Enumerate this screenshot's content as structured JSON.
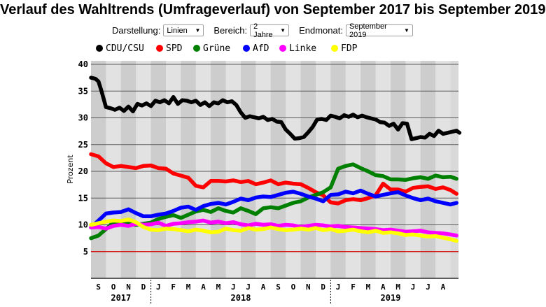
{
  "title": "Verlauf des Wahltrends (Umfrageverlauf) von September 2017 bis September 2019",
  "controls": {
    "darstellung": {
      "label": "Darstellung:",
      "value": "Linien"
    },
    "bereich": {
      "label": "Bereich:",
      "value": "2 Jahre"
    },
    "endmonat": {
      "label": "Endmonat:",
      "value": "September 2019"
    }
  },
  "chart_data": {
    "type": "line",
    "ylabel": "Prozent",
    "ylim": [
      0,
      40
    ],
    "yticks": [
      5,
      10,
      15,
      20,
      25,
      30,
      35,
      40
    ],
    "xlim": [
      0,
      24.6
    ],
    "grid": true,
    "legend_position": "top",
    "reference_line": {
      "y": 5,
      "color": "#e00000"
    },
    "months": [
      "S",
      "O",
      "N",
      "D",
      "J",
      "F",
      "M",
      "A",
      "M",
      "J",
      "J",
      "A",
      "S",
      "O",
      "N",
      "D",
      "J",
      "F",
      "M",
      "A",
      "M",
      "J",
      "J",
      "A"
    ],
    "years": [
      {
        "label": "2017",
        "from": 0,
        "to": 4
      },
      {
        "label": "2018",
        "from": 4,
        "to": 16
      },
      {
        "label": "2019",
        "from": 16,
        "to": 24.6
      }
    ],
    "series": [
      {
        "name": "CDU/CSU",
        "color": "#000000",
        "x": [
          0,
          0.3,
          0.5,
          0.7,
          1.0,
          1.3,
          1.6,
          1.9,
          2.2,
          2.5,
          2.8,
          3.1,
          3.4,
          3.7,
          4.0,
          4.3,
          4.6,
          4.9,
          5.2,
          5.5,
          5.8,
          6.1,
          6.4,
          6.7,
          7.0,
          7.3,
          7.6,
          7.9,
          8.2,
          8.5,
          8.8,
          9.1,
          9.4,
          9.7,
          10.0,
          10.3,
          10.6,
          10.9,
          11.2,
          11.5,
          11.8,
          12.1,
          12.4,
          12.7,
          13.0,
          13.3,
          13.6,
          13.9,
          14.2,
          14.5,
          14.8,
          15.1,
          15.4,
          15.7,
          16.0,
          16.3,
          16.6,
          16.9,
          17.2,
          17.5,
          17.8,
          18.1,
          18.4,
          18.7,
          19.0,
          19.3,
          19.6,
          19.9,
          20.2,
          20.5,
          20.8,
          21.1,
          21.4,
          21.7,
          22.0,
          22.3,
          22.6,
          22.9,
          23.2,
          23.5,
          23.8,
          24.1,
          24.4,
          24.6
        ],
        "values": [
          37.5,
          37.3,
          36.8,
          35,
          32,
          31.8,
          31.5,
          31.9,
          31.3,
          32.1,
          31.2,
          32.6,
          32.3,
          32.7,
          32.2,
          33.2,
          32.9,
          33.3,
          32.7,
          33.9,
          32.6,
          33.3,
          33.2,
          32.9,
          33.2,
          32.4,
          32.9,
          32.2,
          32.9,
          32.7,
          33.3,
          32.9,
          33.1,
          32.4,
          31,
          30,
          30.3,
          30.1,
          29.9,
          30.2,
          29.6,
          29.8,
          29.3,
          29.2,
          27.8,
          27,
          26.1,
          26.2,
          26.4,
          27.3,
          28.3,
          29.7,
          29.8,
          29.6,
          30.4,
          30.2,
          29.9,
          30.5,
          30.2,
          30.6,
          30.1,
          30.4,
          30.1,
          29.9,
          29.7,
          29.2,
          29.1,
          28.5,
          28.9,
          27.8,
          29,
          28.9,
          26,
          26.2,
          26.4,
          26.3,
          27,
          26.6,
          27.6,
          27,
          27.2,
          27.4,
          27.6,
          27.2
        ]
      },
      {
        "name": "SPD",
        "color": "#ff0000",
        "x": [
          0,
          0.5,
          1.0,
          1.5,
          2.0,
          2.5,
          3.0,
          3.5,
          4.0,
          4.5,
          5.0,
          5.5,
          6.0,
          6.5,
          7.0,
          7.5,
          8.0,
          8.5,
          9.0,
          9.5,
          10.0,
          10.5,
          11.0,
          11.5,
          12.0,
          12.5,
          13.0,
          13.5,
          14.0,
          14.5,
          15.0,
          15.5,
          16.0,
          16.5,
          17.0,
          17.5,
          18.0,
          18.5,
          19.0,
          19.5,
          20.0,
          20.5,
          21.0,
          21.5,
          22.0,
          22.5,
          23.0,
          23.5,
          24.0,
          24.4
        ],
        "values": [
          23.2,
          22.8,
          21.5,
          20.8,
          21.0,
          20.8,
          20.6,
          21.0,
          21.1,
          20.6,
          20.5,
          19.6,
          19.2,
          18.8,
          17.3,
          17.0,
          18.2,
          18.2,
          18.1,
          18.3,
          18.0,
          18.2,
          17.6,
          17.9,
          18.3,
          17.6,
          17.9,
          17.7,
          17.6,
          16.9,
          16.1,
          15.5,
          14.2,
          14.0,
          14.6,
          14.8,
          14.6,
          15.0,
          15.5,
          17.7,
          16.6,
          16.6,
          16.2,
          16.9,
          17.1,
          17.2,
          16.7,
          17.0,
          16.5,
          15.8
        ]
      },
      {
        "name": "Grüne",
        "color": "#008000",
        "x": [
          0,
          0.5,
          1.0,
          1.5,
          2.0,
          2.5,
          3.0,
          3.5,
          4.0,
          4.5,
          5.0,
          5.5,
          6.0,
          6.5,
          7.0,
          7.5,
          8.0,
          8.5,
          9.0,
          9.5,
          10.0,
          10.5,
          11.0,
          11.5,
          12.0,
          12.5,
          13.0,
          13.5,
          14.0,
          14.5,
          15.0,
          15.5,
          16.0,
          16.5,
          17.0,
          17.5,
          18.0,
          18.5,
          19.0,
          19.5,
          20.0,
          20.5,
          21.0,
          21.5,
          22.0,
          22.5,
          23.0,
          23.5,
          24.0,
          24.4
        ],
        "values": [
          7.5,
          8.0,
          9.2,
          10.5,
          10.1,
          10.2,
          10.0,
          10.2,
          10.4,
          11.1,
          11.5,
          11.8,
          11.3,
          11.9,
          12.5,
          12.8,
          12.4,
          13.1,
          12.6,
          12.3,
          13.1,
          12.6,
          12.0,
          13.1,
          13.3,
          13.1,
          13.6,
          14.1,
          14.4,
          15.1,
          15.6,
          16.1,
          17.0,
          20.5,
          21.0,
          21.3,
          20.6,
          20.0,
          19.3,
          19.1,
          18.5,
          18.5,
          18.4,
          18.7,
          18.9,
          18.6,
          19.2,
          18.9,
          19.0,
          18.6
        ]
      },
      {
        "name": "AfD",
        "color": "#0000ff",
        "x": [
          0,
          0.5,
          1.0,
          1.5,
          2.0,
          2.5,
          3.0,
          3.5,
          4.0,
          4.5,
          5.0,
          5.5,
          6.0,
          6.5,
          7.0,
          7.5,
          8.0,
          8.5,
          9.0,
          9.5,
          10.0,
          10.5,
          11.0,
          11.5,
          12.0,
          12.5,
          13.0,
          13.5,
          14.0,
          14.5,
          15.0,
          15.5,
          16.0,
          16.5,
          17.0,
          17.5,
          18.0,
          18.5,
          19.0,
          19.5,
          20.0,
          20.5,
          21.0,
          21.5,
          22.0,
          22.5,
          23.0,
          23.5,
          24.0,
          24.4
        ],
        "values": [
          9.5,
          10.8,
          12.1,
          12.3,
          12.4,
          12.9,
          12.2,
          11.6,
          11.6,
          11.9,
          12.1,
          12.6,
          13.2,
          13.4,
          12.8,
          13.5,
          13.9,
          14.1,
          13.8,
          14.3,
          14.9,
          14.6,
          15.1,
          15.3,
          15.2,
          15.6,
          16.0,
          16.2,
          15.8,
          15.3,
          14.9,
          14.4,
          15.6,
          15.7,
          16.2,
          15.9,
          16.4,
          15.8,
          15.3,
          15.6,
          15.9,
          16.1,
          15.5,
          15.0,
          14.6,
          14.9,
          14.4,
          14.1,
          13.8,
          14.1
        ]
      },
      {
        "name": "Linke",
        "color": "#ff00ff",
        "x": [
          0,
          0.5,
          1.0,
          1.5,
          2.0,
          2.5,
          3.0,
          3.5,
          4.0,
          4.5,
          5.0,
          5.5,
          6.0,
          6.5,
          7.0,
          7.5,
          8.0,
          8.5,
          9.0,
          9.5,
          10.0,
          10.5,
          11.0,
          11.5,
          12.0,
          12.5,
          13.0,
          13.5,
          14.0,
          14.5,
          15.0,
          15.5,
          16.0,
          16.5,
          17.0,
          17.5,
          18.0,
          18.5,
          19.0,
          19.5,
          20.0,
          20.5,
          21.0,
          21.5,
          22.0,
          22.5,
          23.0,
          23.5,
          24.0,
          24.4
        ],
        "values": [
          9.5,
          9.6,
          9.3,
          9.8,
          10.0,
          9.8,
          10.2,
          10.0,
          10.1,
          10.4,
          9.8,
          10.2,
          10.3,
          10.5,
          10.6,
          10.8,
          10.4,
          10.6,
          10.3,
          10.5,
          10.1,
          9.9,
          10.2,
          10.0,
          10.1,
          9.8,
          10.0,
          9.9,
          9.6,
          9.8,
          10.0,
          9.9,
          9.7,
          9.8,
          9.6,
          9.5,
          9.4,
          9.3,
          9.2,
          9.0,
          9.1,
          8.9,
          8.7,
          8.8,
          8.9,
          8.6,
          8.5,
          8.4,
          8.2,
          8.0
        ]
      },
      {
        "name": "FDP",
        "color": "#ffff00",
        "x": [
          0,
          0.5,
          1.0,
          1.5,
          2.0,
          2.5,
          3.0,
          3.5,
          4.0,
          4.5,
          5.0,
          5.5,
          6.0,
          6.5,
          7.0,
          7.5,
          8.0,
          8.5,
          9.0,
          9.5,
          10.0,
          10.5,
          11.0,
          11.5,
          12.0,
          12.5,
          13.0,
          13.5,
          14.0,
          14.5,
          15.0,
          15.5,
          16.0,
          16.5,
          17.0,
          17.5,
          18.0,
          18.5,
          19.0,
          19.5,
          20.0,
          20.5,
          21.0,
          21.5,
          22.0,
          22.5,
          23.0,
          23.5,
          24.0,
          24.4
        ],
        "values": [
          10.0,
          10.3,
          10.6,
          10.8,
          10.7,
          11.0,
          10.5,
          9.6,
          9.1,
          9.0,
          9.3,
          9.2,
          9.0,
          8.8,
          9.1,
          8.9,
          8.6,
          8.7,
          9.3,
          9.0,
          8.9,
          9.4,
          9.1,
          9.2,
          9.5,
          9.2,
          9.0,
          9.1,
          9.3,
          9.1,
          9.4,
          9.0,
          9.2,
          8.8,
          8.9,
          9.1,
          8.8,
          8.6,
          8.9,
          8.5,
          8.6,
          8.4,
          8.1,
          8.2,
          8.0,
          7.8,
          7.9,
          7.6,
          7.3,
          7.0
        ]
      }
    ]
  }
}
